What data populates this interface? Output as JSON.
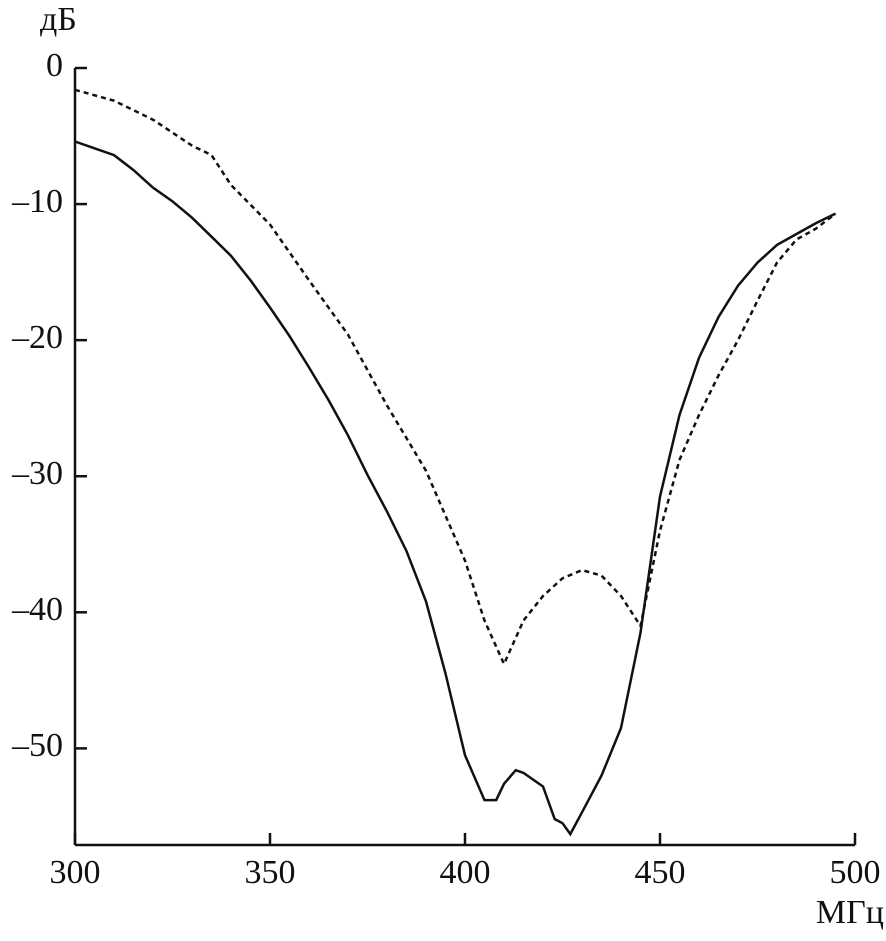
{
  "chart_data": {
    "type": "line",
    "y_label": "дБ",
    "x_label": "МГц",
    "xlim": [
      300,
      500
    ],
    "xticks": [
      300,
      350,
      400,
      450,
      500
    ],
    "ylim": [
      -57.1,
      0
    ],
    "yticks": [
      0,
      {
        "value": -10,
        "label": "–10"
      },
      {
        "value": -20,
        "label": "–20"
      },
      {
        "value": -30,
        "label": "–30"
      },
      {
        "value": -40,
        "label": "–40"
      },
      {
        "value": -50,
        "label": "–50"
      }
    ],
    "grid": false,
    "series": [
      {
        "color": "#111111",
        "dash": "solid",
        "x": [
          300,
          305,
          310,
          315,
          320,
          325,
          330,
          335,
          340,
          345,
          350,
          355,
          360,
          365,
          370,
          375,
          380,
          385,
          390,
          395,
          400,
          405,
          408,
          410,
          413,
          415,
          420,
          423,
          425,
          427,
          430,
          435,
          440,
          445,
          450,
          455,
          460,
          465,
          470,
          475,
          480,
          485,
          490,
          495
        ],
        "values": [
          -5.4,
          -5.9,
          -6.4,
          -7.5,
          -8.8,
          -9.8,
          -11.0,
          -12.4,
          -13.8,
          -15.6,
          -17.6,
          -19.7,
          -22.0,
          -24.4,
          -27.0,
          -29.9,
          -32.6,
          -35.5,
          -39.2,
          -44.5,
          -50.5,
          -53.8,
          -53.8,
          -52.6,
          -51.6,
          -51.8,
          -52.8,
          -55.2,
          -55.5,
          -56.3,
          -54.7,
          -52.0,
          -48.5,
          -41.5,
          -31.5,
          -25.5,
          -21.3,
          -18.3,
          -16.0,
          -14.3,
          -13.0,
          -12.2,
          -11.4,
          -10.7
        ]
      },
      {
        "color": "#111111",
        "dash": "dashed",
        "x": [
          300,
          310,
          320,
          330,
          335,
          340,
          350,
          360,
          370,
          380,
          390,
          400,
          405,
          410,
          415,
          420,
          425,
          430,
          435,
          440,
          445,
          450,
          455,
          460,
          465,
          470,
          475,
          480,
          485,
          490,
          495
        ],
        "values": [
          -1.6,
          -2.4,
          -3.8,
          -5.7,
          -6.4,
          -8.6,
          -11.5,
          -15.6,
          -19.6,
          -24.8,
          -29.6,
          -36.2,
          -40.6,
          -43.8,
          -40.6,
          -38.8,
          -37.5,
          -36.9,
          -37.3,
          -38.8,
          -41.0,
          -34.0,
          -28.8,
          -25.5,
          -22.6,
          -20.0,
          -17.1,
          -14.3,
          -12.6,
          -11.8,
          -10.7
        ]
      }
    ]
  }
}
